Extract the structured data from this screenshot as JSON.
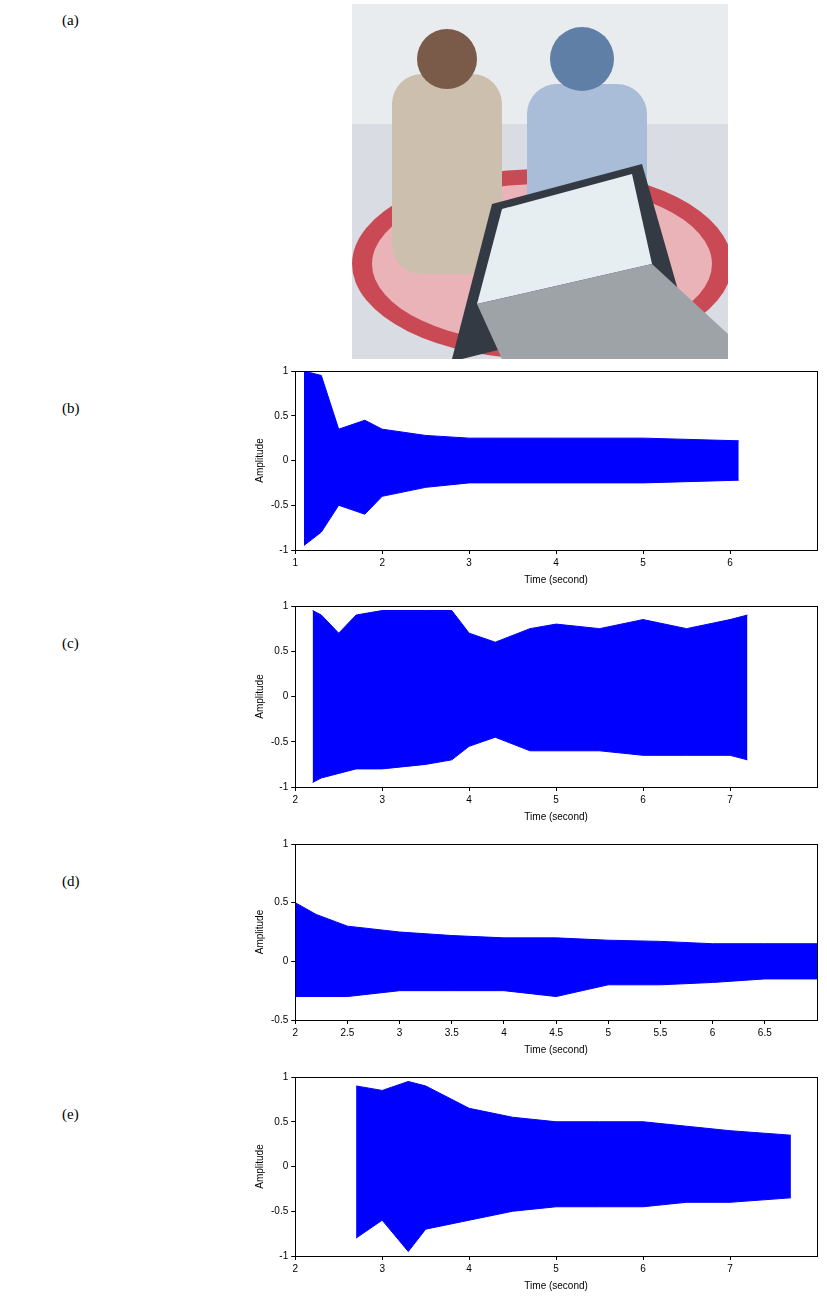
{
  "photo_label": "(a)",
  "chart_data": [
    {
      "label": "(b)",
      "type": "area",
      "x_label": "Time (second)",
      "y_label": "Amplitude",
      "x": [
        1.1,
        1.3,
        1.5,
        1.8,
        2,
        2.5,
        3,
        4,
        5,
        6.1
      ],
      "series": [
        {
          "color": "#0000ff",
          "values": [
            1,
            0.95,
            0.35,
            0.45,
            0.35,
            0.28,
            0.25,
            0.25,
            0.25,
            0.22
          ]
        },
        {
          "color": "#0000ff",
          "values": [
            -0.95,
            -0.8,
            -0.5,
            -0.6,
            -0.4,
            -0.3,
            -0.25,
            -0.25,
            -0.25,
            -0.22
          ]
        }
      ],
      "xlim": [
        1,
        7
      ],
      "xticks": [
        1,
        2,
        3,
        4,
        5,
        6
      ],
      "ylim": [
        -1,
        1
      ],
      "yticks": [
        -1,
        -0.5,
        0,
        0.5,
        1
      ],
      "grid": false
    },
    {
      "label": "(c)",
      "type": "area",
      "x_label": "Time (second)",
      "y_label": "Amplitude",
      "x": [
        2.2,
        2.3,
        2.5,
        2.7,
        3,
        3.5,
        3.8,
        4,
        4.3,
        4.7,
        5,
        5.5,
        6,
        6.5,
        7,
        7.2
      ],
      "series": [
        {
          "color": "#0000ff",
          "values": [
            0.95,
            0.9,
            0.7,
            0.9,
            0.95,
            0.95,
            0.95,
            0.7,
            0.6,
            0.75,
            0.8,
            0.75,
            0.85,
            0.75,
            0.85,
            0.9
          ]
        },
        {
          "color": "#0000ff",
          "values": [
            -0.95,
            -0.9,
            -0.85,
            -0.8,
            -0.8,
            -0.75,
            -0.7,
            -0.55,
            -0.45,
            -0.6,
            -0.6,
            -0.6,
            -0.65,
            -0.65,
            -0.65,
            -0.7
          ]
        }
      ],
      "xlim": [
        2,
        8
      ],
      "xticks": [
        2,
        3,
        4,
        5,
        6,
        7
      ],
      "ylim": [
        -1,
        1
      ],
      "yticks": [
        -1,
        -0.5,
        0,
        0.5,
        1
      ],
      "grid": false
    },
    {
      "label": "(d)",
      "type": "area",
      "x_label": "Time (second)",
      "y_label": "Amplitude",
      "x": [
        2,
        2.2,
        2.5,
        3,
        3.5,
        4,
        4.5,
        5,
        5.5,
        6,
        6.5,
        7
      ],
      "series": [
        {
          "color": "#0000ff",
          "values": [
            0.5,
            0.4,
            0.3,
            0.25,
            0.22,
            0.2,
            0.2,
            0.18,
            0.17,
            0.15,
            0.15,
            0.15
          ]
        },
        {
          "color": "#0000ff",
          "values": [
            -0.3,
            -0.3,
            -0.3,
            -0.25,
            -0.25,
            -0.25,
            -0.3,
            -0.2,
            -0.2,
            -0.18,
            -0.15,
            -0.15
          ]
        }
      ],
      "xlim": [
        2,
        7
      ],
      "xticks": [
        2,
        2.5,
        3,
        3.5,
        4,
        4.5,
        5,
        5.5,
        6,
        6.5
      ],
      "ylim": [
        -0.5,
        1
      ],
      "yticks": [
        -0.5,
        0,
        0.5,
        1
      ],
      "grid": false
    },
    {
      "label": "(e)",
      "type": "area",
      "x_label": "Time (second)",
      "y_label": "Amplitude",
      "x": [
        2.7,
        3,
        3.3,
        3.5,
        4,
        4.5,
        5,
        5.5,
        6,
        6.5,
        7,
        7.7
      ],
      "series": [
        {
          "color": "#0000ff",
          "values": [
            0.9,
            0.85,
            0.95,
            0.9,
            0.65,
            0.55,
            0.5,
            0.5,
            0.5,
            0.45,
            0.4,
            0.35
          ]
        },
        {
          "color": "#0000ff",
          "values": [
            -0.8,
            -0.6,
            -0.95,
            -0.7,
            -0.6,
            -0.5,
            -0.45,
            -0.45,
            -0.45,
            -0.4,
            -0.4,
            -0.35
          ]
        }
      ],
      "xlim": [
        2,
        8
      ],
      "xticks": [
        2,
        3,
        4,
        5,
        6,
        7
      ],
      "ylim": [
        -1,
        1
      ],
      "yticks": [
        -1,
        -0.5,
        0,
        0.5,
        1
      ],
      "grid": false
    }
  ]
}
